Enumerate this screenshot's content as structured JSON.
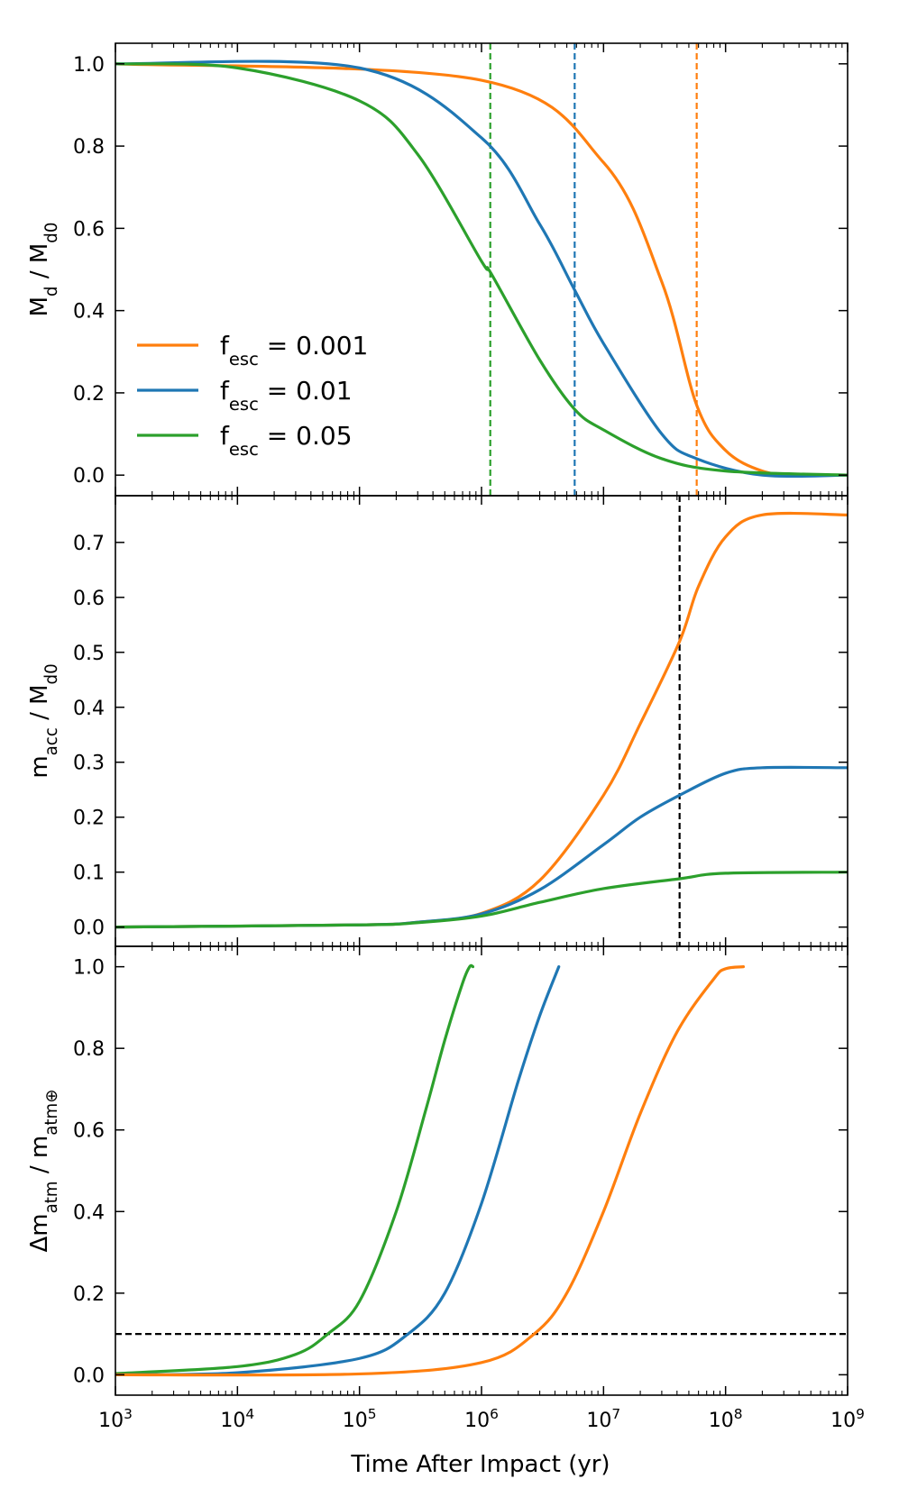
{
  "colors": {
    "orange": "#ff7f0e",
    "blue": "#1f77b4",
    "green": "#2ca02c",
    "black": "#000000"
  },
  "xaxis": {
    "label": "Time After Impact (yr)",
    "scale": "log",
    "range": [
      1000,
      1000000000
    ],
    "ticks": [
      {
        "value": 1000,
        "base": "10",
        "exp": "3"
      },
      {
        "value": 10000,
        "base": "10",
        "exp": "4"
      },
      {
        "value": 100000,
        "base": "10",
        "exp": "5"
      },
      {
        "value": 1000000,
        "base": "10",
        "exp": "6"
      },
      {
        "value": 10000000,
        "base": "10",
        "exp": "7"
      },
      {
        "value": 100000000,
        "base": "10",
        "exp": "8"
      },
      {
        "value": 1000000000,
        "base": "10",
        "exp": "9"
      }
    ]
  },
  "legend": {
    "position": "lower-left of top panel",
    "entries": [
      {
        "symbol": "f",
        "sub": "esc",
        "text": " = 0.001",
        "color": "#ff7f0e"
      },
      {
        "symbol": "f",
        "sub": "esc",
        "text": " = 0.01",
        "color": "#1f77b4"
      },
      {
        "symbol": "f",
        "sub": "esc",
        "text": " = 0.05",
        "color": "#2ca02c"
      }
    ]
  },
  "chart_data": [
    {
      "type": "line",
      "ylabel_parts": [
        [
          "M",
          ""
        ],
        [
          "d",
          "sub"
        ],
        [
          " / M",
          ""
        ],
        [
          "d0",
          "sub"
        ]
      ],
      "ylim": [
        -0.05,
        1.05
      ],
      "yticks": [
        "0.0",
        "0.2",
        "0.4",
        "0.6",
        "0.8",
        "1.0"
      ],
      "ytick_values": [
        0.0,
        0.2,
        0.4,
        0.6,
        0.8,
        1.0
      ],
      "series": [
        {
          "color": "#ff7f0e",
          "x": [
            1000,
            1000000,
            10000000,
            30000000,
            58000000,
            100000000,
            200000000,
            400000000,
            1000000000
          ],
          "y": [
            1.0,
            0.96,
            0.76,
            0.47,
            0.17,
            0.06,
            0.01,
            0.0,
            0.0
          ]
        },
        {
          "color": "#1f77b4",
          "x": [
            1000,
            100000,
            1000000,
            3000000,
            5800000,
            10000000,
            30000000,
            58000000,
            200000000,
            1000000000
          ],
          "y": [
            1.0,
            0.99,
            0.82,
            0.61,
            0.45,
            0.32,
            0.1,
            0.04,
            0.0,
            0.0
          ]
        },
        {
          "color": "#2ca02c",
          "x": [
            1000,
            10000,
            100000,
            300000,
            1000000,
            1200000,
            3000000,
            5800000,
            10000000,
            30000000,
            100000000,
            1000000000
          ],
          "y": [
            1.0,
            0.99,
            0.91,
            0.78,
            0.52,
            0.49,
            0.28,
            0.16,
            0.11,
            0.04,
            0.01,
            0.0
          ]
        }
      ],
      "vlines": [
        {
          "x": 1180000,
          "color": "#2ca02c"
        },
        {
          "x": 5800000,
          "color": "#1f77b4"
        },
        {
          "x": 58000000,
          "color": "#ff7f0e"
        }
      ]
    },
    {
      "type": "line",
      "ylabel_parts": [
        [
          "m",
          ""
        ],
        [
          "acc",
          "sub"
        ],
        [
          " / M",
          ""
        ],
        [
          "d0",
          "sub"
        ]
      ],
      "ylim": [
        -0.035,
        0.785
      ],
      "yticks": [
        "0.0",
        "0.1",
        "0.2",
        "0.3",
        "0.4",
        "0.5",
        "0.6",
        "0.7"
      ],
      "ytick_values": [
        0.0,
        0.1,
        0.2,
        0.3,
        0.4,
        0.5,
        0.6,
        0.7
      ],
      "series": [
        {
          "color": "#ff7f0e",
          "x": [
            1000,
            100000,
            300000,
            1000000,
            3000000,
            10000000,
            20000000,
            42000000,
            60000000,
            100000000,
            200000000,
            1000000000
          ],
          "y": [
            0.0,
            0.004,
            0.009,
            0.025,
            0.085,
            0.24,
            0.37,
            0.52,
            0.62,
            0.71,
            0.75,
            0.75
          ]
        },
        {
          "color": "#1f77b4",
          "x": [
            1000,
            100000,
            300000,
            1000000,
            3000000,
            10000000,
            20000000,
            42000000,
            100000000,
            200000000,
            1000000000
          ],
          "y": [
            0.0,
            0.004,
            0.009,
            0.024,
            0.068,
            0.15,
            0.2,
            0.24,
            0.28,
            0.29,
            0.29
          ]
        },
        {
          "color": "#2ca02c",
          "x": [
            1000,
            100000,
            300000,
            1000000,
            3000000,
            10000000,
            42000000,
            100000000,
            1000000000
          ],
          "y": [
            0.0,
            0.004,
            0.008,
            0.02,
            0.045,
            0.07,
            0.088,
            0.098,
            0.1
          ]
        }
      ],
      "vlines": [
        {
          "x": 42000000,
          "color": "#000000"
        }
      ]
    },
    {
      "type": "line",
      "ylabel_parts": [
        [
          "Δm",
          ""
        ],
        [
          "atm",
          "sub"
        ],
        [
          " / m",
          ""
        ],
        [
          "atm⊕",
          "sub"
        ]
      ],
      "ylim": [
        -0.05,
        1.05
      ],
      "yticks": [
        "0.0",
        "0.2",
        "0.4",
        "0.6",
        "0.8",
        "1.0"
      ],
      "ytick_values": [
        0.0,
        0.2,
        0.4,
        0.6,
        0.8,
        1.0
      ],
      "series": [
        {
          "color": "#2ca02c",
          "x": [
            1000,
            10000,
            30000,
            55000,
            100000,
            200000,
            350000,
            500000,
            700000,
            800000,
            850000
          ],
          "y": [
            0.003,
            0.02,
            0.05,
            0.1,
            0.18,
            0.4,
            0.65,
            0.82,
            0.96,
            1.0,
            1.0
          ]
        },
        {
          "color": "#1f77b4",
          "x": [
            1000,
            10000,
            100000,
            250000,
            500000,
            1000000,
            2000000,
            3000000,
            4300000
          ],
          "y": [
            0.0,
            0.005,
            0.04,
            0.1,
            0.2,
            0.42,
            0.72,
            0.88,
            1.0
          ]
        },
        {
          "color": "#ff7f0e",
          "x": [
            1000,
            100000,
            1000000,
            2700000,
            5000000,
            10000000,
            20000000,
            40000000,
            80000000,
            100000000,
            140000000
          ],
          "y": [
            0.0,
            0.002,
            0.03,
            0.1,
            0.2,
            0.4,
            0.64,
            0.84,
            0.97,
            0.995,
            1.0
          ]
        }
      ],
      "hlines": [
        {
          "y": 0.1,
          "color": "#000000"
        }
      ]
    }
  ]
}
